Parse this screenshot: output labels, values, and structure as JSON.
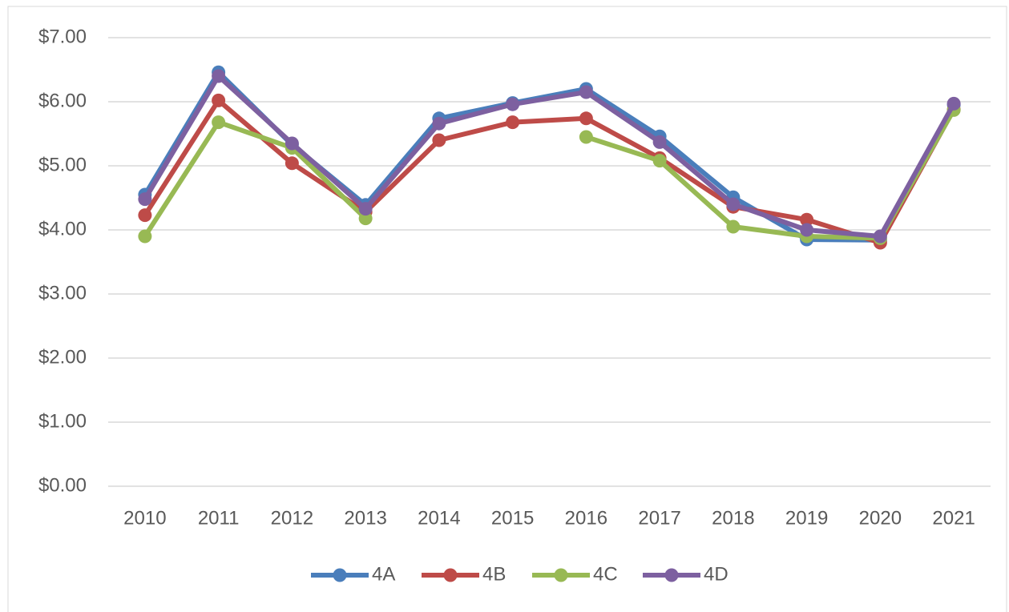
{
  "chart_data": {
    "type": "line",
    "categories": [
      "2010",
      "2011",
      "2012",
      "2013",
      "2014",
      "2015",
      "2016",
      "2017",
      "2018",
      "2019",
      "2020",
      "2021"
    ],
    "series": [
      {
        "name": "4A",
        "color": "#4a7ebb",
        "values": [
          4.55,
          6.46,
          5.33,
          4.39,
          5.74,
          5.98,
          6.2,
          5.46,
          4.51,
          3.85,
          3.84,
          5.95
        ]
      },
      {
        "name": "4B",
        "color": "#be4b48",
        "values": [
          4.23,
          6.02,
          5.04,
          4.28,
          5.4,
          5.68,
          5.74,
          5.12,
          4.36,
          4.16,
          3.8,
          5.88
        ]
      },
      {
        "name": "4C",
        "color": "#98b954",
        "values": [
          3.9,
          5.68,
          5.28,
          4.18,
          null,
          null,
          5.45,
          5.08,
          4.05,
          3.9,
          3.87,
          5.87
        ]
      },
      {
        "name": "4D",
        "color": "#7d60a0",
        "values": [
          4.48,
          6.4,
          5.35,
          4.33,
          5.66,
          5.96,
          6.15,
          5.37,
          4.4,
          4.0,
          3.9,
          5.97
        ]
      }
    ],
    "ylim": [
      0,
      7
    ],
    "yticks": [
      {
        "value": 0,
        "label": "$0.00"
      },
      {
        "value": 1,
        "label": "$1.00"
      },
      {
        "value": 2,
        "label": "$2.00"
      },
      {
        "value": 3,
        "label": "$3.00"
      },
      {
        "value": 4,
        "label": "$4.00"
      },
      {
        "value": 5,
        "label": "$5.00"
      },
      {
        "value": 6,
        "label": "$6.00"
      },
      {
        "value": 7,
        "label": "$7.00"
      }
    ],
    "grid": true,
    "legend": "bottom"
  }
}
